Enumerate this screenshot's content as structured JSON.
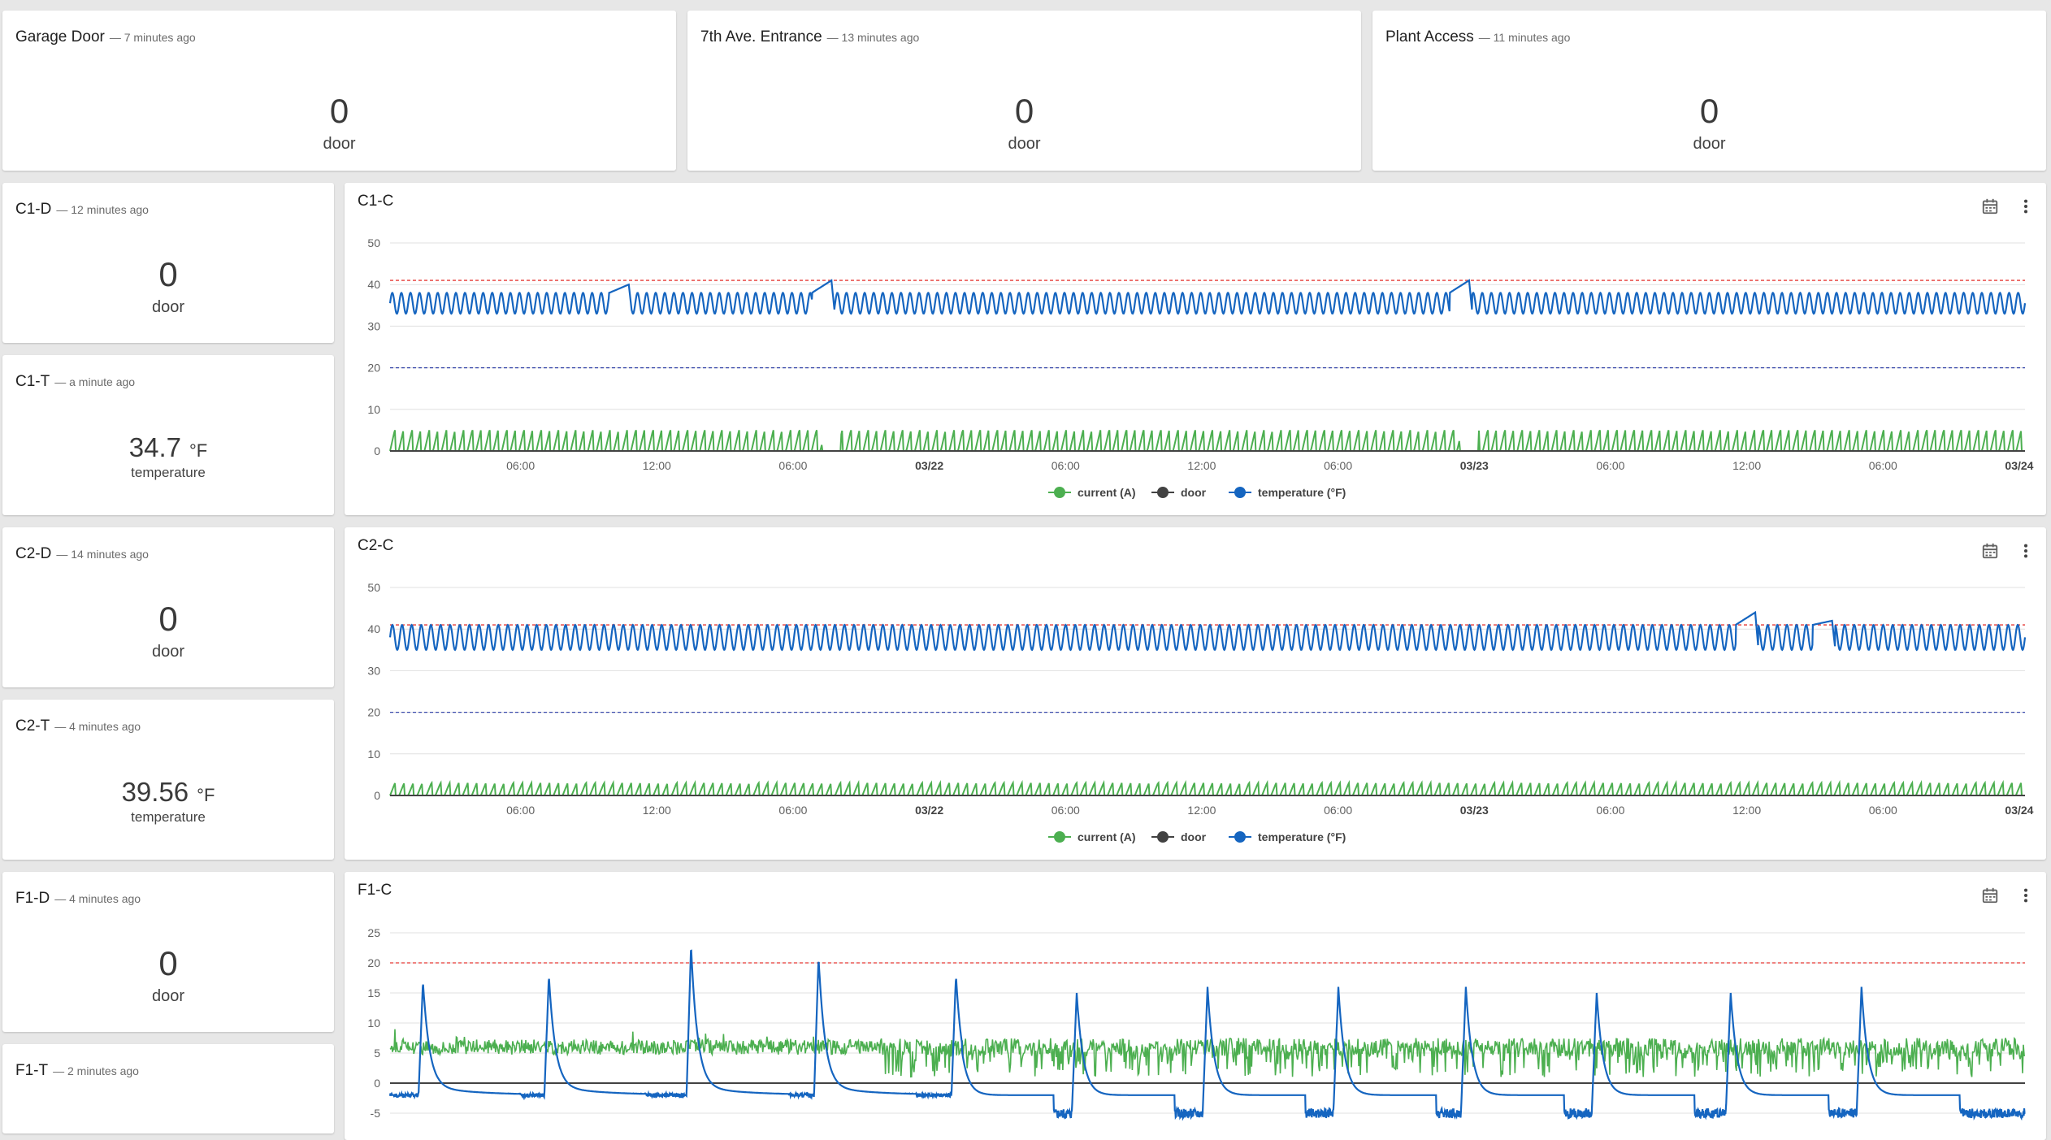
{
  "top_cards": [
    {
      "title": "Garage Door",
      "age": "7 minutes ago",
      "value": "0",
      "unit": "door"
    },
    {
      "title": "7th Ave. Entrance",
      "age": "13 minutes ago",
      "value": "0",
      "unit": "door"
    },
    {
      "title": "Plant Access",
      "age": "11 minutes ago",
      "value": "0",
      "unit": "door"
    }
  ],
  "side_cards": [
    {
      "title": "C1-D",
      "age": "12 minutes ago",
      "value": "0",
      "unit": "door"
    },
    {
      "title": "C1-T",
      "age": "a minute ago",
      "value": "34.7",
      "unit": "°F",
      "label": "temperature"
    },
    {
      "title": "C2-D",
      "age": "14 minutes ago",
      "value": "0",
      "unit": "door"
    },
    {
      "title": "C2-T",
      "age": "4 minutes ago",
      "value": "39.56",
      "unit": "°F",
      "label": "temperature"
    },
    {
      "title": "F1-D",
      "age": "4 minutes ago",
      "value": "0",
      "unit": "door"
    },
    {
      "title": "F1-T",
      "age": "2 minutes ago"
    }
  ],
  "colors": {
    "current": "#4caf50",
    "door": "#424242",
    "temperature": "#1565c0",
    "upper_limit": "#e53935",
    "lower_limit": "#3949ab"
  },
  "chart_data": [
    {
      "type": "line",
      "title": "C1-C",
      "yticks": [
        0,
        10,
        20,
        30,
        40,
        50
      ],
      "ylim": [
        0,
        50
      ],
      "xticks": [
        "06:00",
        "12:00",
        "06:00",
        "03/22",
        "06:00",
        "12:00",
        "06:00",
        "03/23",
        "06:00",
        "12:00",
        "06:00",
        "03/24"
      ],
      "xticks_bold": [
        "03/22",
        "03/23",
        "03/24"
      ],
      "thresholds": {
        "upper": 41,
        "lower": 20
      },
      "legend": [
        "current (A)",
        "door",
        "temperature (°F)"
      ],
      "series": [
        {
          "name": "current (A)",
          "pattern": "cycling",
          "min": 0,
          "max": 5,
          "gaps_at": [
            0.27,
            0.66
          ]
        },
        {
          "name": "door",
          "pattern": "flat",
          "value": 0
        },
        {
          "name": "temperature (°F)",
          "pattern": "oscillating",
          "min": 33,
          "max": 38,
          "peaks": [
            {
              "at": 0.146,
              "value": 40
            },
            {
              "at": 0.27,
              "value": 41
            },
            {
              "at": 0.66,
              "value": 41
            }
          ]
        }
      ]
    },
    {
      "type": "line",
      "title": "C2-C",
      "yticks": [
        0,
        10,
        20,
        30,
        40,
        50
      ],
      "ylim": [
        0,
        50
      ],
      "xticks": [
        "06:00",
        "12:00",
        "06:00",
        "03/22",
        "06:00",
        "12:00",
        "06:00",
        "03/23",
        "06:00",
        "12:00",
        "06:00",
        "03/24"
      ],
      "xticks_bold": [
        "03/22",
        "03/23",
        "03/24"
      ],
      "thresholds": {
        "upper": 41,
        "lower": 20
      },
      "legend": [
        "current (A)",
        "door",
        "temperature (°F)"
      ],
      "series": [
        {
          "name": "current (A)",
          "pattern": "cycling",
          "min": 0,
          "max": 3
        },
        {
          "name": "door",
          "pattern": "flat",
          "value": 0
        },
        {
          "name": "temperature (°F)",
          "pattern": "oscillating",
          "min": 35,
          "max": 41,
          "peaks": [
            {
              "at": 0.835,
              "value": 44
            },
            {
              "at": 0.882,
              "value": 42
            }
          ]
        }
      ]
    },
    {
      "type": "line",
      "title": "F1-C",
      "yticks": [
        -5,
        0,
        5,
        10,
        15,
        20,
        25
      ],
      "ylim": [
        -5,
        25
      ],
      "thresholds": {
        "upper": 20
      },
      "series": [
        {
          "name": "current (A)",
          "pattern": "noisy",
          "min": 0,
          "max": 8
        },
        {
          "name": "door",
          "pattern": "flat",
          "value": 0
        },
        {
          "name": "temperature (°F)",
          "pattern": "defrost-spikes",
          "base": -5,
          "peaks": [
            {
              "at": 0.02,
              "value": 16
            },
            {
              "at": 0.097,
              "value": 17
            },
            {
              "at": 0.184,
              "value": 22
            },
            {
              "at": 0.262,
              "value": 20
            },
            {
              "at": 0.346,
              "value": 17
            },
            {
              "at": 0.42,
              "value": 15
            },
            {
              "at": 0.5,
              "value": 16
            },
            {
              "at": 0.58,
              "value": 16
            },
            {
              "at": 0.658,
              "value": 16
            },
            {
              "at": 0.738,
              "value": 15
            },
            {
              "at": 0.82,
              "value": 15
            },
            {
              "at": 0.9,
              "value": 16
            }
          ]
        }
      ]
    }
  ]
}
